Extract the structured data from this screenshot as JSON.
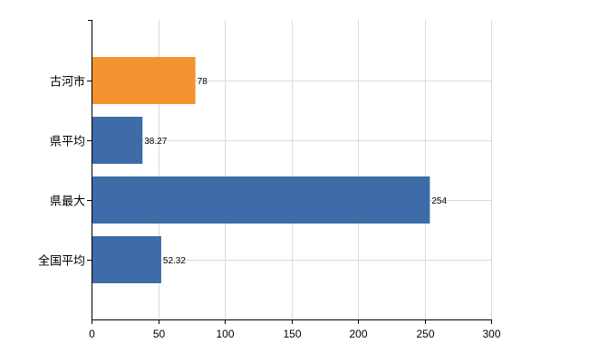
{
  "chart_data": {
    "type": "bar",
    "orientation": "horizontal",
    "title": "",
    "xlabel": "",
    "ylabel": "",
    "categories": [
      "古河市",
      "県平均",
      "県最大",
      "全国平均"
    ],
    "values": [
      78,
      38.27,
      254,
      52.32
    ],
    "data_labels": [
      "78",
      "38.27",
      "254",
      "52.32"
    ],
    "bar_colors": [
      "#F39431",
      "#3D6CA8",
      "#3D6CA8",
      "#3D6CA8"
    ],
    "xlim": [
      0,
      300
    ],
    "xticks": [
      0,
      50,
      100,
      150,
      200,
      250,
      300
    ],
    "grid": true,
    "legend": "none"
  }
}
